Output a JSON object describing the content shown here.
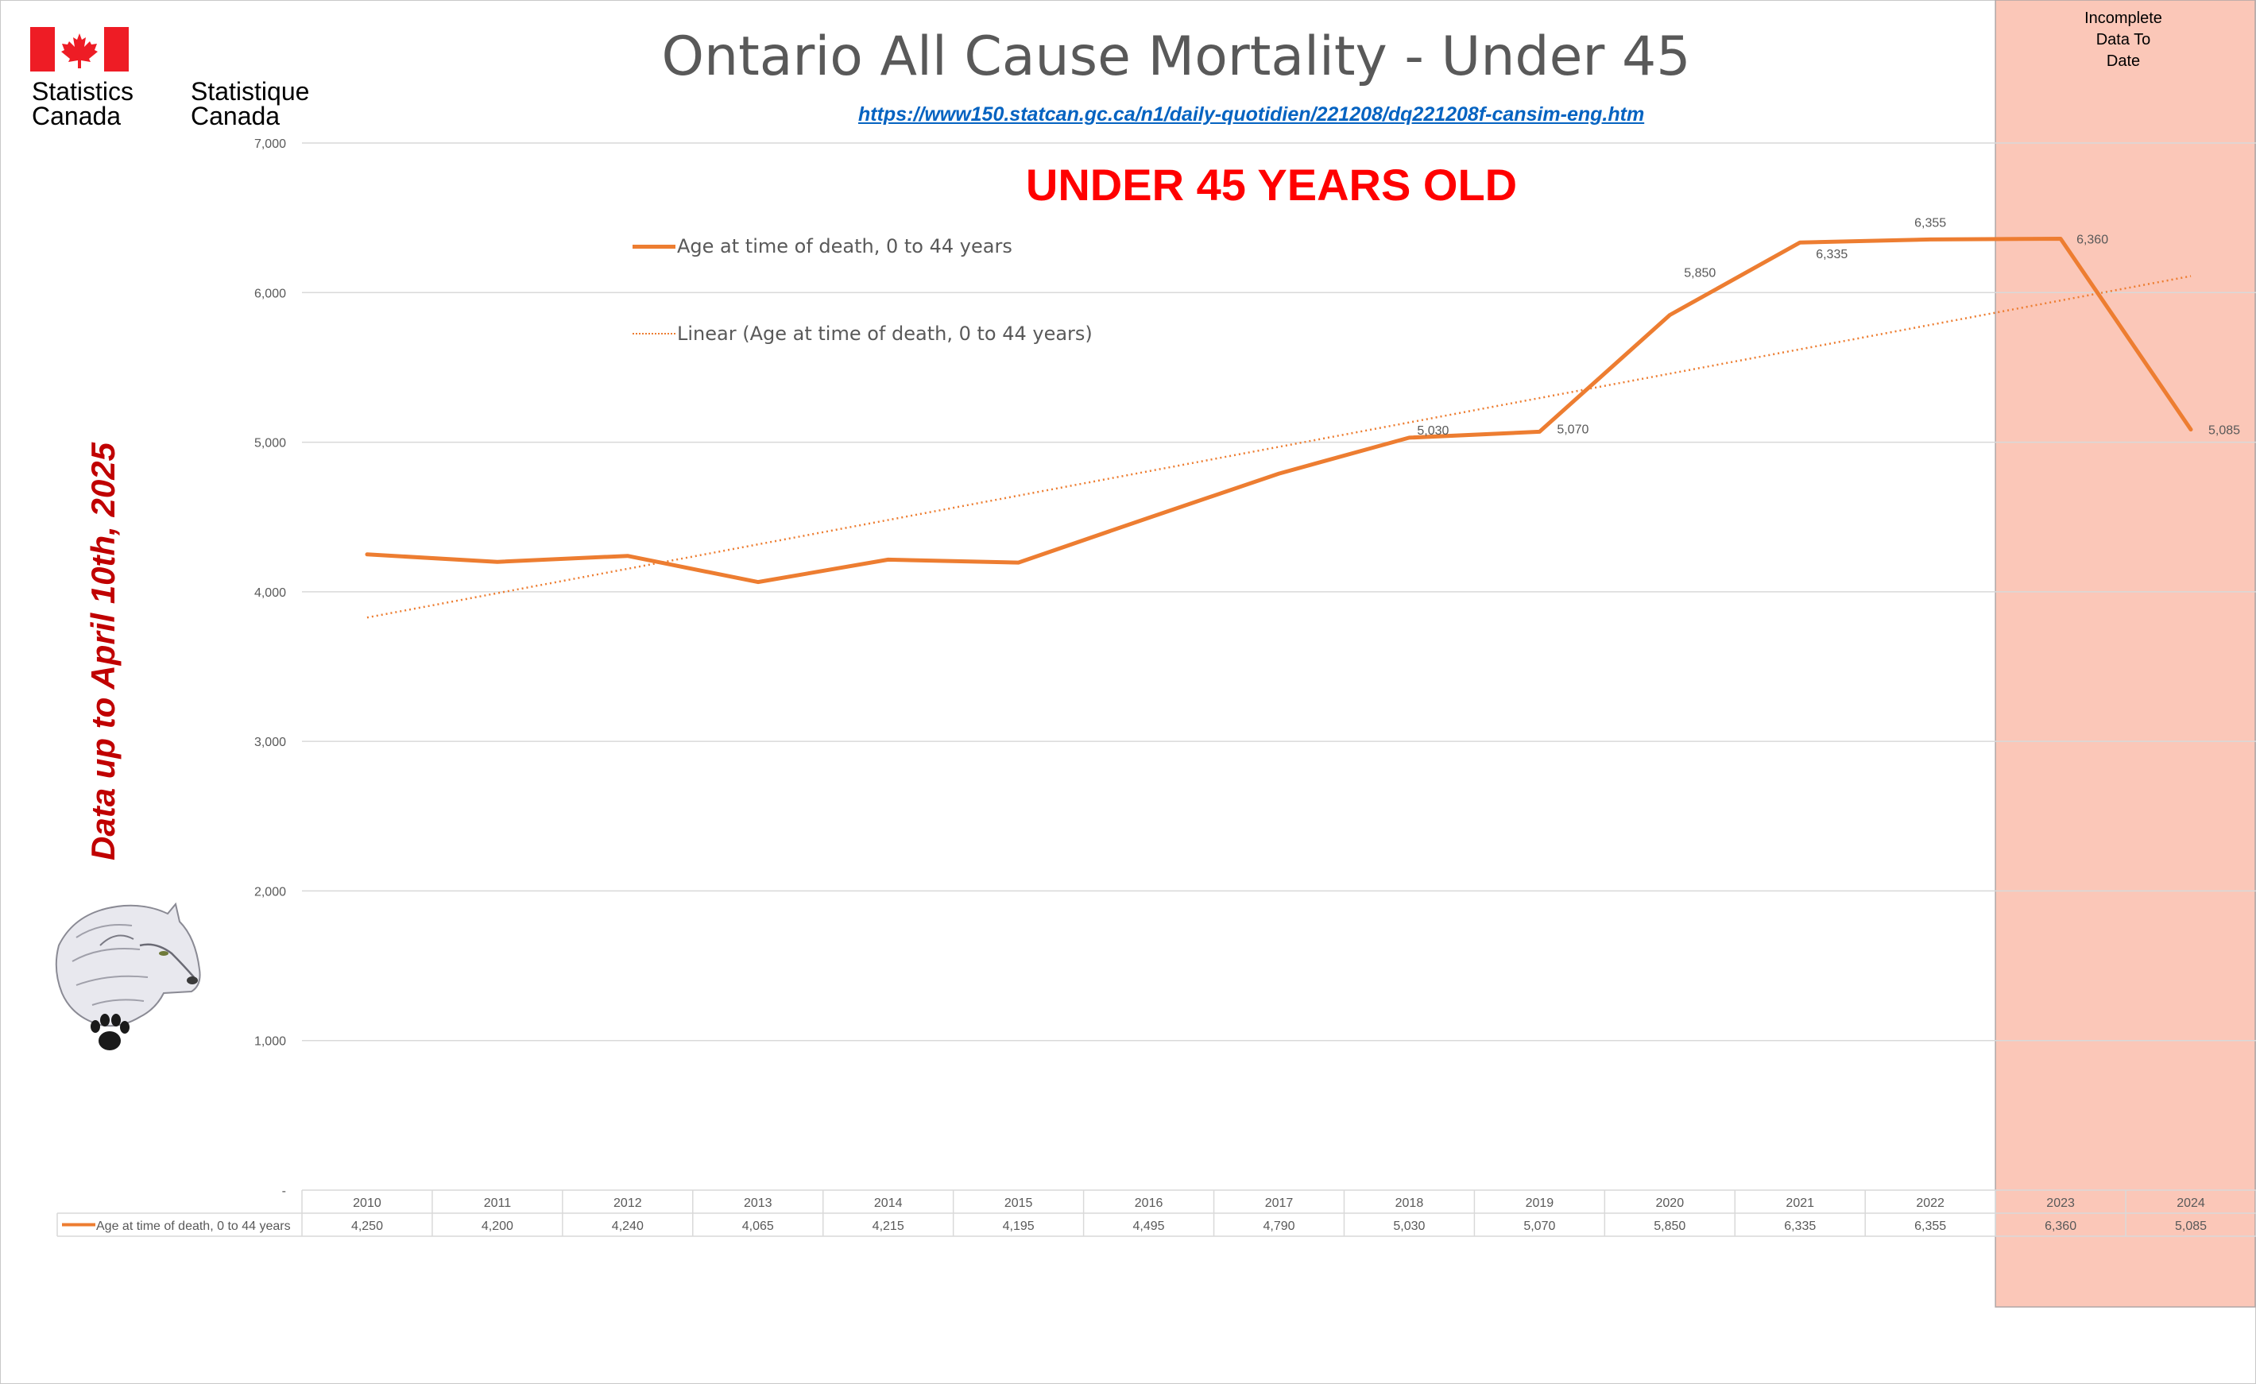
{
  "header": {
    "logo_en_line1": "Statistics",
    "logo_en_line2": "Canada",
    "logo_fr_line1": "Statistique",
    "logo_fr_line2": "Canada",
    "source_url": "https://www150.statcan.gc.ca/n1/daily-quotidien/221208/dq221208f-cansim-eng.htm"
  },
  "annotations": {
    "side_note": "Data up to April 10th, 2025",
    "shade_note_lines": [
      "Incomplete",
      "Data To",
      "Date"
    ]
  },
  "colors": {
    "series": "#ed7d31",
    "shade": "#fbc7b8",
    "shade_border": "#b0a6a6",
    "title": "#595959",
    "subtitle": "#ff0000",
    "side_note": "#c00000",
    "link": "#0563c1",
    "flag_red": "#ee1c25"
  },
  "chart_data": {
    "type": "line",
    "title": "Ontario All Cause Mortality - Under 45",
    "subtitle": "UNDER 45 YEARS OLD",
    "categories": [
      "2010",
      "2011",
      "2012",
      "2013",
      "2014",
      "2015",
      "2016",
      "2017",
      "2018",
      "2019",
      "2020",
      "2021",
      "2022",
      "2023",
      "2024"
    ],
    "series": [
      {
        "name": "Age at time of death, 0 to 44 years",
        "values": [
          4250,
          4200,
          4240,
          4065,
          4215,
          4195,
          4495,
          4790,
          5030,
          5070,
          5850,
          6335,
          6355,
          6360,
          5085
        ],
        "display_values": [
          "4,250",
          "4,200",
          "4,240",
          "4,065",
          "4,215",
          "4,195",
          "4,495",
          "4,790",
          "5,030",
          "5,070",
          "5,850",
          "6,335",
          "6,355",
          "6,360",
          "5,085"
        ]
      }
    ],
    "trendline": {
      "name": "Linear (Age at time of death, 0 to 44 years)",
      "type": "linear",
      "style": "dotted"
    },
    "data_labels": [
      {
        "category": "2018",
        "text": "5,030"
      },
      {
        "category": "2019",
        "text": "5,070"
      },
      {
        "category": "2020",
        "text": "5,850"
      },
      {
        "category": "2021",
        "text": "6,335"
      },
      {
        "category": "2022",
        "text": "6,355"
      },
      {
        "category": "2023",
        "text": "6,360"
      },
      {
        "category": "2024",
        "text": "5,085"
      }
    ],
    "yticks": [
      "-",
      "1,000",
      "2,000",
      "3,000",
      "4,000",
      "5,000",
      "6,000",
      "7,000"
    ],
    "ylim": [
      0,
      7000
    ],
    "grid": true,
    "legend_position": "top-left",
    "data_table": true,
    "shaded_categories": [
      "2023",
      "2024"
    ]
  }
}
